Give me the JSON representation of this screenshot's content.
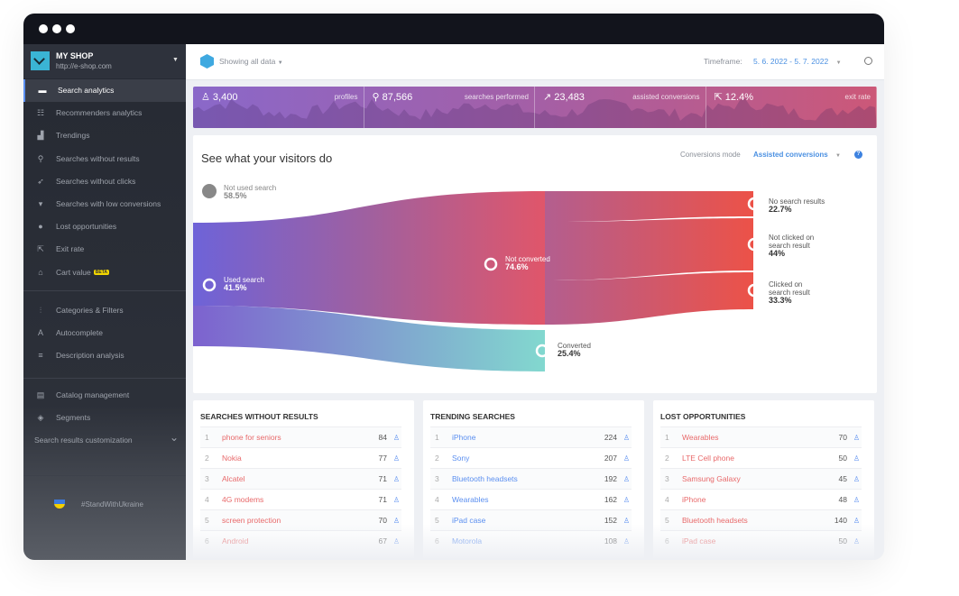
{
  "sidebar": {
    "shop_name": "MY SHOP",
    "shop_url": "http://e-shop.com",
    "items": [
      {
        "label": "Search analytics",
        "icon": "chat-bubble-icon"
      },
      {
        "label": "Recommenders analytics",
        "icon": "recommender-icon"
      },
      {
        "label": "Trendings",
        "icon": "bar-chart-icon"
      },
      {
        "label": "Searches without results",
        "icon": "search-x-icon"
      },
      {
        "label": "Searches without clicks",
        "icon": "cursor-icon"
      },
      {
        "label": "Searches with low conversions",
        "icon": "thumbs-down-icon"
      },
      {
        "label": "Lost opportunities",
        "icon": "money-bag-icon"
      },
      {
        "label": "Exit rate",
        "icon": "exit-icon"
      },
      {
        "label": "Cart value",
        "icon": "basket-icon",
        "badge": "BETA"
      }
    ],
    "items2": [
      {
        "label": "Categories & Filters",
        "icon": "sliders-icon"
      },
      {
        "label": "Autocomplete",
        "icon": "autocomplete-icon"
      },
      {
        "label": "Description analysis",
        "icon": "text-icon"
      }
    ],
    "items3": [
      {
        "label": "Catalog management",
        "icon": "catalog-icon"
      },
      {
        "label": "Segments",
        "icon": "segments-icon"
      },
      {
        "label": "Search results customization",
        "icon": "chevron-down-icon"
      }
    ],
    "footer": "#StandWithUkraine"
  },
  "header": {
    "filter": "Showing all data",
    "timeframe_label": "Timeframe:",
    "timeframe": "5. 6. 2022 - 5. 7. 2022"
  },
  "metrics": [
    {
      "value": "3,400",
      "label": "profiles",
      "icon": "user-icon"
    },
    {
      "value": "87,566",
      "label": "searches performed",
      "icon": "search-icon"
    },
    {
      "value": "23,483",
      "label": "assisted conversions",
      "icon": "trend-icon"
    },
    {
      "value": "12.4%",
      "label": "exit rate",
      "icon": "exit-icon"
    }
  ],
  "sankey": {
    "title": "See what your visitors do",
    "mode_label": "Conversions mode",
    "mode_value": "Assisted conversions",
    "nodes": {
      "not_used": {
        "label": "Not used search",
        "value": "58.5%"
      },
      "used": {
        "label": "Used search",
        "value": "41.5%"
      },
      "not_converted": {
        "label": "Not converted",
        "value": "74.6%"
      },
      "converted": {
        "label": "Converted",
        "value": "25.4%"
      },
      "no_results": {
        "label": "No search results",
        "value": "22.7%"
      },
      "not_clicked": {
        "label": "Not clicked on search result",
        "value": "44%"
      },
      "clicked": {
        "label": "Clicked on search result",
        "value": "33.3%"
      }
    }
  },
  "tables": [
    {
      "title": "SEARCHES WITHOUT RESULTS",
      "color": "#e8696a",
      "rows": [
        [
          "1",
          "phone for seniors",
          "84"
        ],
        [
          "2",
          "Nokia",
          "77"
        ],
        [
          "3",
          "Alcatel",
          "71"
        ],
        [
          "4",
          "4G modems",
          "71"
        ],
        [
          "5",
          "screen protection",
          "70"
        ],
        [
          "6",
          "Android",
          "67"
        ]
      ]
    },
    {
      "title": "TRENDING SEARCHES",
      "color": "#5b8ff0",
      "rows": [
        [
          "1",
          "iPhone",
          "224"
        ],
        [
          "2",
          "Sony",
          "207"
        ],
        [
          "3",
          "Bluetooth headsets",
          "192"
        ],
        [
          "4",
          "Wearables",
          "162"
        ],
        [
          "5",
          "iPad case",
          "152"
        ],
        [
          "6",
          "Motorola",
          "108"
        ]
      ]
    },
    {
      "title": "LOST OPPORTUNITIES",
      "color": "#e8696a",
      "rows": [
        [
          "1",
          "Wearables",
          "70"
        ],
        [
          "2",
          "LTE Cell phone",
          "50"
        ],
        [
          "3",
          "Samsung Galaxy",
          "45"
        ],
        [
          "4",
          "iPhone",
          "48"
        ],
        [
          "5",
          "Bluetooth headsets",
          "140"
        ],
        [
          "6",
          "iPad case",
          "50"
        ]
      ]
    }
  ]
}
